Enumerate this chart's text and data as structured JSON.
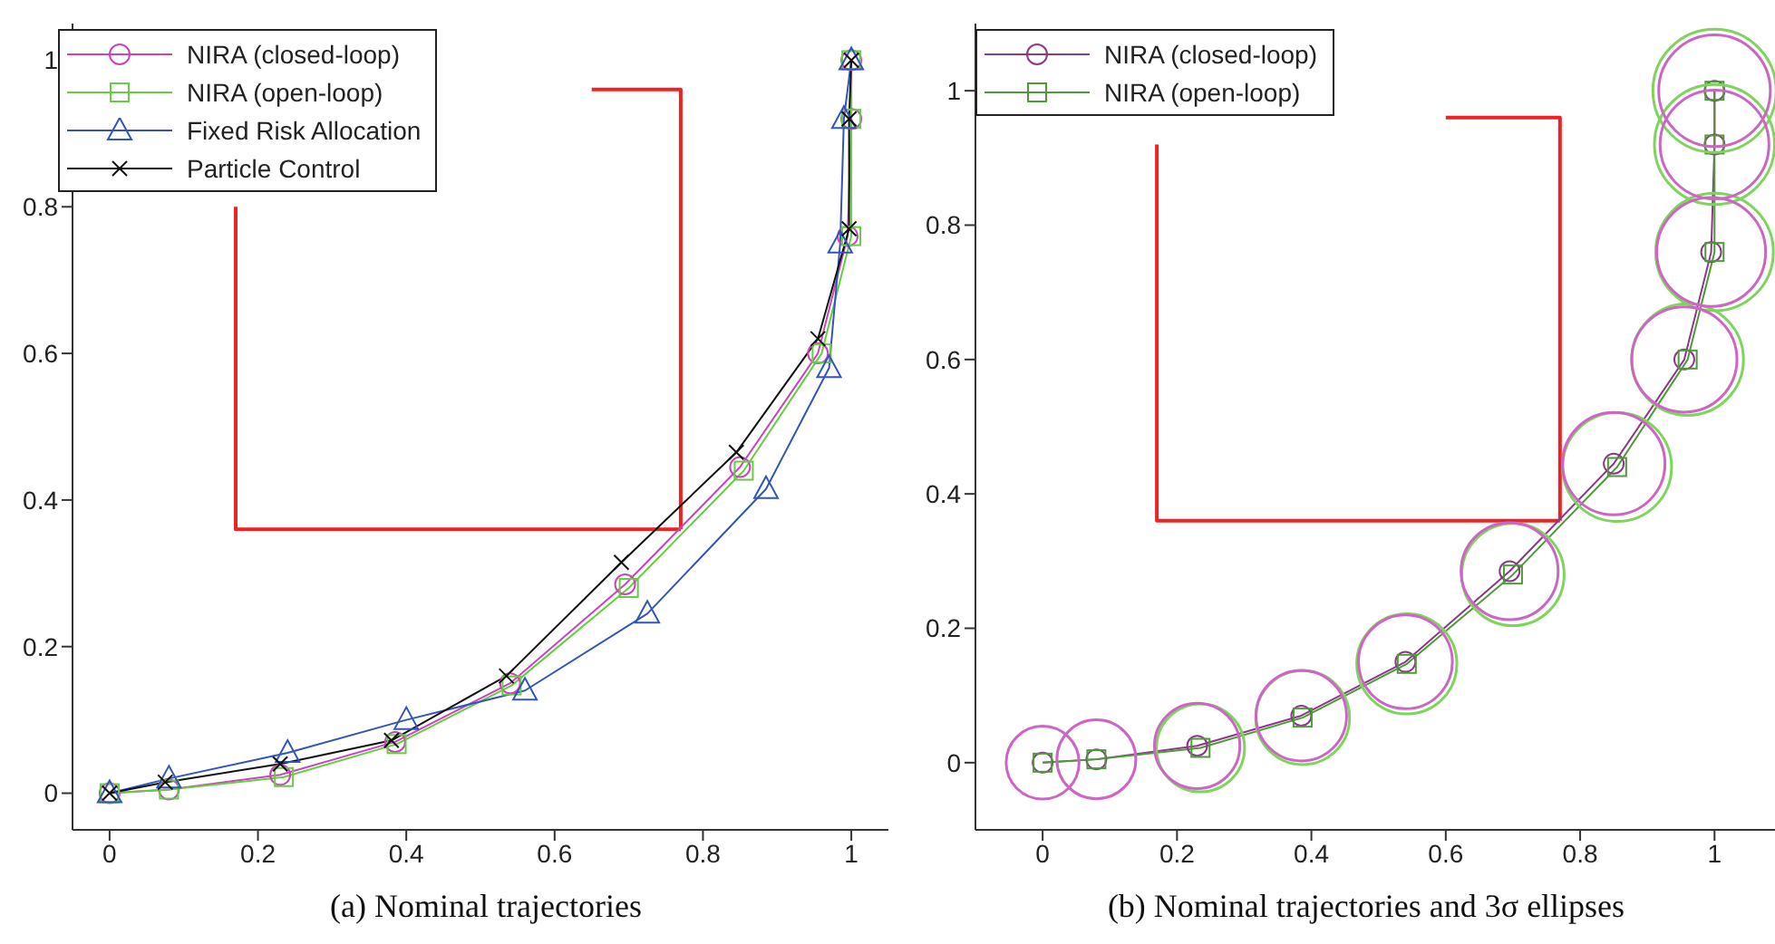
{
  "chart_data": [
    {
      "type": "line",
      "xlabel": "(a)  Nominal trajectories",
      "xlim": [
        -0.05,
        1.05
      ],
      "ylim": [
        -0.05,
        1.05
      ],
      "xticks": [
        0,
        0.2,
        0.4,
        0.6,
        0.8,
        1
      ],
      "yticks": [
        0,
        0.2,
        0.4,
        0.6,
        0.8,
        1
      ],
      "legend": "top left",
      "series": [
        {
          "color": "#ee2222",
          "marker": "none",
          "x": [
            0.65,
            0.77,
            0.77
          ],
          "values": [
            0.96,
            0.96,
            0.36
          ]
        },
        {
          "color": "#ee2222",
          "marker": "none",
          "x": [
            0.17,
            0.17,
            0.77
          ],
          "values": [
            0.8,
            0.36,
            0.36
          ]
        },
        {
          "name": "NIRA (closed-loop)",
          "color": "#cc44bb",
          "marker": "circle",
          "x": [
            0,
            0.08,
            0.23,
            0.385,
            0.54,
            0.695,
            0.85,
            0.955,
            0.995,
            1,
            1
          ],
          "values": [
            0,
            0.005,
            0.025,
            0.07,
            0.15,
            0.285,
            0.445,
            0.6,
            0.76,
            0.92,
            1
          ]
        },
        {
          "name": "NIRA (open-loop)",
          "color": "#66cc44",
          "marker": "square",
          "x": [
            0,
            0.08,
            0.235,
            0.387,
            0.542,
            0.7,
            0.855,
            0.96,
            1,
            1,
            1
          ],
          "values": [
            0,
            0.005,
            0.022,
            0.067,
            0.147,
            0.28,
            0.44,
            0.6,
            0.76,
            0.92,
            1
          ]
        },
        {
          "name": "Fixed Risk Allocation",
          "color": "#3355bb",
          "marker": "triangle",
          "x": [
            0,
            0.08,
            0.24,
            0.4,
            0.56,
            0.725,
            0.885,
            0.97,
            0.985,
            0.99,
            1
          ],
          "values": [
            0,
            0.02,
            0.055,
            0.1,
            0.14,
            0.245,
            0.415,
            0.58,
            0.75,
            0.92,
            1
          ]
        },
        {
          "name": "Particle Control",
          "color": "#111111",
          "marker": "cross",
          "x": [
            0,
            0.075,
            0.23,
            0.38,
            0.535,
            0.69,
            0.845,
            0.955,
            0.997,
            0.997,
            1
          ],
          "values": [
            0,
            0.015,
            0.04,
            0.072,
            0.16,
            0.315,
            0.465,
            0.62,
            0.77,
            0.92,
            1
          ]
        }
      ]
    },
    {
      "type": "line",
      "xlabel": "(b)  Nominal trajectories and 3σ ellipses",
      "xlim": [
        -0.1,
        1.09
      ],
      "ylim": [
        -0.1,
        1.1
      ],
      "xticks": [
        0,
        0.2,
        0.4,
        0.6,
        0.8,
        1
      ],
      "yticks": [
        0,
        0.2,
        0.4,
        0.6,
        0.8,
        1
      ],
      "legend": "top left",
      "series": [
        {
          "color": "#ee2222",
          "marker": "none",
          "x": [
            0.6,
            0.77,
            0.77
          ],
          "values": [
            0.96,
            0.96,
            0.36
          ]
        },
        {
          "color": "#ee2222",
          "marker": "none",
          "x": [
            0.17,
            0.17,
            0.77
          ],
          "values": [
            0.92,
            0.36,
            0.36
          ]
        },
        {
          "name": "NIRA (closed-loop)",
          "color": "#8a3a86",
          "marker": "circle",
          "x": [
            0,
            0.08,
            0.23,
            0.385,
            0.54,
            0.695,
            0.85,
            0.955,
            0.995,
            1,
            1
          ],
          "values": [
            0,
            0.005,
            0.025,
            0.07,
            0.15,
            0.285,
            0.445,
            0.6,
            0.76,
            0.92,
            1
          ]
        },
        {
          "name": "NIRA (open-loop)",
          "color": "#4e9a3a",
          "marker": "square",
          "x": [
            0,
            0.08,
            0.235,
            0.387,
            0.542,
            0.7,
            0.855,
            0.96,
            1,
            1,
            1
          ],
          "values": [
            0,
            0.005,
            0.022,
            0.067,
            0.147,
            0.28,
            0.44,
            0.6,
            0.76,
            0.92,
            1
          ]
        },
        {
          "type": "bubble",
          "color": "#7fd45e",
          "x": [
            0.235,
            0.387,
            0.542,
            0.7,
            0.855,
            0.96,
            1,
            1,
            1
          ],
          "values": [
            0.022,
            0.067,
            0.147,
            0.28,
            0.44,
            0.6,
            0.76,
            0.92,
            1
          ],
          "sizes": [
            0.51,
            0.58,
            0.66,
            0.69,
            0.78,
            0.82,
            0.91,
            0.95,
            1
          ]
        },
        {
          "type": "bubble",
          "color": "#cc66c4",
          "x": [
            0,
            0.08,
            0.23,
            0.385,
            0.54,
            0.695,
            0.85,
            0.955,
            0.995,
            1,
            1
          ],
          "values": [
            0,
            0.005,
            0.025,
            0.07,
            0.15,
            0.285,
            0.445,
            0.6,
            0.76,
            0.92,
            1
          ],
          "sizes": [
            0.35,
            0.41,
            0.48,
            0.54,
            0.58,
            0.62,
            0.69,
            0.73,
            0.78,
            0.78,
            0.82
          ]
        }
      ]
    }
  ]
}
